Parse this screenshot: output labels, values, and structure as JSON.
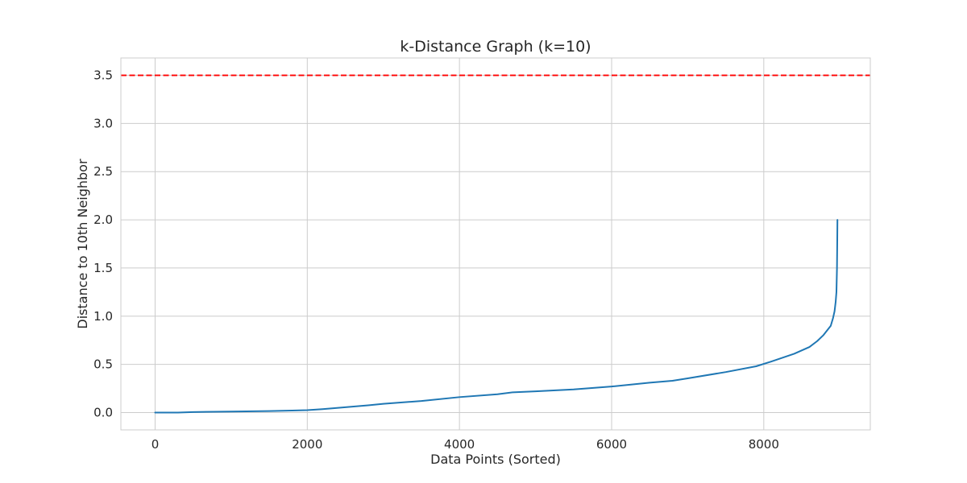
{
  "chart_data": {
    "type": "line",
    "title": "k-Distance Graph (k=10)",
    "xlabel": "Data Points (Sorted)",
    "ylabel": "Distance to 10th Neighbor",
    "xlim": [
      -450,
      9400
    ],
    "ylim": [
      -0.18,
      3.68
    ],
    "xticks": [
      0,
      2000,
      4000,
      6000,
      8000
    ],
    "xtick_labels": [
      "0",
      "2000",
      "4000",
      "6000",
      "8000"
    ],
    "yticks": [
      0.0,
      0.5,
      1.0,
      1.5,
      2.0,
      2.5,
      3.0,
      3.5
    ],
    "ytick_labels": [
      "0.0",
      "0.5",
      "1.0",
      "1.5",
      "2.0",
      "2.5",
      "3.0",
      "3.5"
    ],
    "grid": true,
    "series": [
      {
        "name": "k-distance",
        "color": "#1f77b4",
        "x": [
          0,
          300,
          500,
          1000,
          1500,
          1800,
          2000,
          2200,
          2500,
          2800,
          3000,
          3500,
          4000,
          4500,
          4700,
          5000,
          5500,
          6000,
          6500,
          6800,
          7000,
          7500,
          7900,
          8100,
          8400,
          8600,
          8700,
          8780,
          8830,
          8880,
          8910,
          8930,
          8945,
          8955,
          8962,
          8966,
          8968
        ],
        "y": [
          0.0,
          0.0,
          0.005,
          0.01,
          0.015,
          0.02,
          0.025,
          0.035,
          0.055,
          0.075,
          0.09,
          0.12,
          0.16,
          0.19,
          0.21,
          0.22,
          0.24,
          0.27,
          0.31,
          0.33,
          0.355,
          0.42,
          0.48,
          0.53,
          0.61,
          0.68,
          0.74,
          0.8,
          0.85,
          0.9,
          0.98,
          1.05,
          1.15,
          1.25,
          1.5,
          1.8,
          2.0
        ]
      }
    ],
    "hlines": [
      {
        "y": 3.5,
        "color": "#ff0000",
        "style": "dashed"
      }
    ]
  }
}
